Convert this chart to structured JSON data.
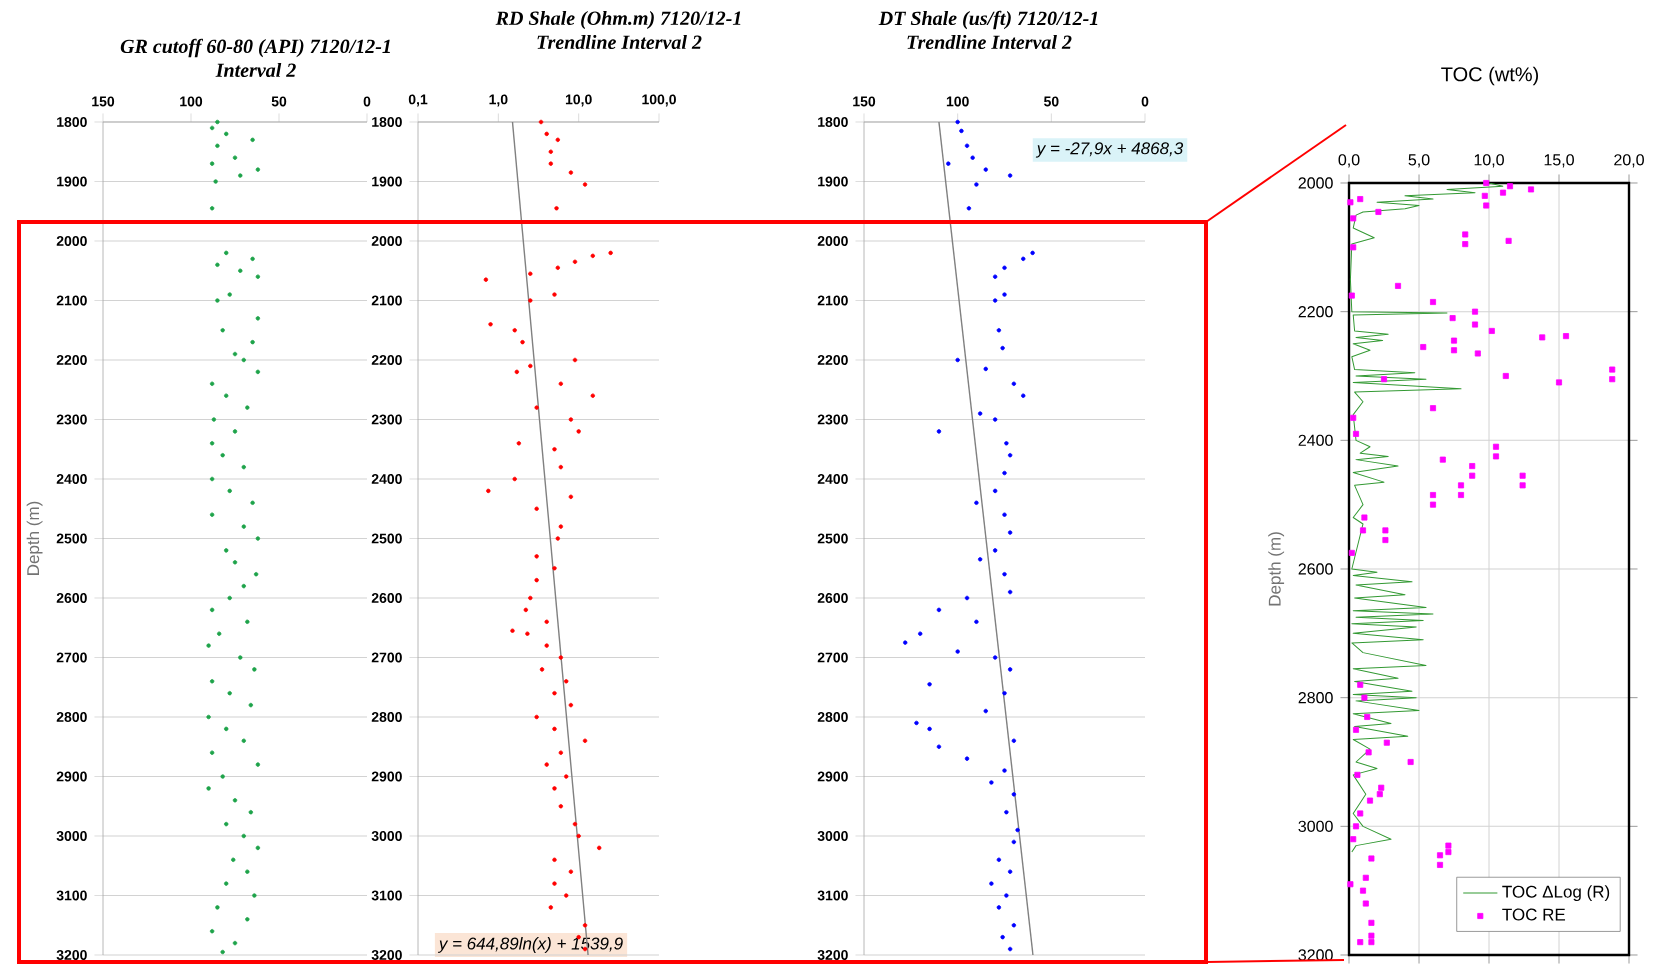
{
  "chart_data": [
    {
      "type": "scatter",
      "title": "GR cutoff 60-80 (API) 7120/12-1",
      "subtitle": "Interval 2",
      "ylabel": "Depth (m)",
      "xlim": [
        150,
        0
      ],
      "ylim": [
        3200,
        1800
      ],
      "xticks": [
        150,
        100,
        50,
        0
      ],
      "yticks": [
        1800,
        1900,
        2000,
        2100,
        2200,
        2300,
        2400,
        2500,
        2600,
        2700,
        2800,
        2900,
        3000,
        3100,
        3200
      ],
      "grid": "y",
      "marker": "circle",
      "series": [
        {
          "color": "#1ea34a",
          "x": [
            85,
            88,
            80,
            65,
            85,
            75,
            88,
            62,
            72,
            86,
            88,
            80,
            65,
            85,
            72,
            62,
            78,
            85,
            62,
            82,
            65,
            75,
            70,
            62,
            88,
            80,
            68,
            87,
            75,
            88,
            82,
            70,
            88,
            78,
            65,
            88,
            70,
            62,
            80,
            75,
            63,
            70,
            78,
            88,
            68,
            84,
            90,
            72,
            64,
            88,
            78,
            66,
            90,
            80,
            70,
            88,
            62,
            82,
            90,
            75,
            66,
            80,
            70,
            62,
            76,
            68,
            80,
            64,
            85,
            68,
            88,
            75,
            82
          ],
          "values": [
            1800,
            1810,
            1820,
            1830,
            1840,
            1860,
            1870,
            1880,
            1890,
            1900,
            1945,
            2020,
            2030,
            2040,
            2050,
            2060,
            2090,
            2100,
            2130,
            2150,
            2170,
            2190,
            2200,
            2220,
            2240,
            2260,
            2280,
            2300,
            2320,
            2340,
            2360,
            2380,
            2400,
            2420,
            2440,
            2460,
            2480,
            2500,
            2520,
            2540,
            2560,
            2580,
            2600,
            2620,
            2640,
            2660,
            2680,
            2700,
            2720,
            2740,
            2760,
            2780,
            2800,
            2820,
            2840,
            2860,
            2880,
            2900,
            2920,
            2940,
            2960,
            2980,
            3000,
            3020,
            3040,
            3060,
            3080,
            3100,
            3120,
            3140,
            3160,
            3180,
            3195
          ]
        }
      ]
    },
    {
      "type": "scatter",
      "title": "RD Shale (Ohm.m) 7120/12-1",
      "subtitle": "Trendline Interval 2",
      "log": "x",
      "xlim": [
        0.1,
        100
      ],
      "ylim": [
        3200,
        1800
      ],
      "xticks": [
        {
          "value": 0.1,
          "label": "0,1"
        },
        {
          "value": 1,
          "label": "1,0"
        },
        {
          "value": 10,
          "label": "10,0"
        },
        {
          "value": 100,
          "label": "100,0"
        }
      ],
      "yticks": [
        1800,
        1900,
        2000,
        2100,
        2200,
        2300,
        2400,
        2500,
        2600,
        2700,
        2800,
        2900,
        3000,
        3100,
        3200
      ],
      "grid": "y",
      "marker": "circle",
      "annotations": [
        "y = 644,89ln(x) + 1539,9"
      ],
      "series": [
        {
          "color": "#ff0000",
          "x": [
            3.4,
            4.0,
            5.5,
            4.5,
            4.5,
            8,
            12,
            5.3,
            25,
            15,
            9,
            5.5,
            2.5,
            0.7,
            5,
            2.5,
            0.8,
            1.6,
            2.0,
            9,
            2.5,
            1.7,
            6,
            15,
            3,
            8,
            10,
            1.8,
            5,
            6,
            1.6,
            0.75,
            8,
            3,
            6,
            5.5,
            3.0,
            5,
            3.0,
            2.5,
            2.2,
            4,
            1.5,
            2.3,
            4,
            6,
            3.5,
            7,
            5,
            8,
            3,
            5,
            12,
            6,
            4,
            7,
            5,
            6,
            9,
            10,
            18,
            5,
            8,
            5,
            7,
            4.5,
            12,
            10,
            12
          ],
          "values": [
            1800,
            1820,
            1830,
            1850,
            1870,
            1885,
            1905,
            1945,
            2020,
            2025,
            2035,
            2045,
            2055,
            2065,
            2090,
            2100,
            2140,
            2150,
            2170,
            2200,
            2210,
            2220,
            2240,
            2260,
            2280,
            2300,
            2320,
            2340,
            2350,
            2380,
            2400,
            2420,
            2430,
            2450,
            2480,
            2500,
            2530,
            2550,
            2570,
            2600,
            2620,
            2640,
            2655,
            2660,
            2680,
            2700,
            2720,
            2740,
            2760,
            2780,
            2800,
            2820,
            2840,
            2860,
            2880,
            2900,
            2920,
            2950,
            2980,
            3000,
            3020,
            3040,
            3060,
            3080,
            3100,
            3120,
            3150,
            3170,
            3190
          ]
        },
        {
          "type": "line",
          "marker": "none",
          "color": "#808080",
          "x": [
            1.5,
            13.1
          ],
          "values": [
            1800,
            3200
          ]
        }
      ]
    },
    {
      "type": "scatter",
      "title": "DT Shale (us/ft) 7120/12-1",
      "subtitle": "Trendline Interval 2",
      "xlim": [
        150,
        0
      ],
      "ylim": [
        3200,
        1800
      ],
      "xticks": [
        150,
        100,
        50,
        0
      ],
      "yticks": [
        1800,
        1900,
        2000,
        2100,
        2200,
        2300,
        2400,
        2500,
        2600,
        2700,
        2800,
        2900,
        3000,
        3100,
        3200
      ],
      "grid": "y",
      "marker": "circle",
      "annotations": [
        "y = -27,9x + 4868,3"
      ],
      "series": [
        {
          "color": "#0000ff",
          "x": [
            100,
            98,
            95,
            92,
            105,
            85,
            72,
            90,
            94,
            60,
            65,
            75,
            80,
            75,
            80,
            78,
            76,
            100,
            85,
            70,
            65,
            88,
            80,
            110,
            74,
            72,
            75,
            80,
            90,
            75,
            72,
            80,
            88,
            75,
            72,
            95,
            110,
            90,
            120,
            128,
            100,
            80,
            72,
            115,
            75,
            85,
            122,
            115,
            70,
            110,
            95,
            75,
            82,
            70,
            74,
            68,
            70,
            78,
            72,
            82,
            74,
            78,
            70,
            76,
            72
          ],
          "values": [
            1800,
            1815,
            1840,
            1860,
            1870,
            1880,
            1890,
            1905,
            1945,
            2020,
            2030,
            2045,
            2060,
            2090,
            2100,
            2150,
            2180,
            2200,
            2215,
            2240,
            2260,
            2290,
            2300,
            2320,
            2340,
            2360,
            2390,
            2420,
            2440,
            2460,
            2490,
            2520,
            2535,
            2560,
            2590,
            2600,
            2620,
            2640,
            2660,
            2675,
            2690,
            2700,
            2720,
            2745,
            2760,
            2790,
            2810,
            2820,
            2840,
            2850,
            2870,
            2890,
            2910,
            2930,
            2960,
            2990,
            3010,
            3040,
            3060,
            3080,
            3100,
            3120,
            3150,
            3170,
            3190
          ]
        },
        {
          "type": "line",
          "marker": "none",
          "color": "#808080",
          "x": [
            110.0,
            59.8
          ],
          "values": [
            1800,
            3200
          ]
        }
      ]
    },
    {
      "type": "scatter",
      "title": "TOC  (wt%)",
      "ylabel": "Depth (m)",
      "xlim": [
        0,
        20
      ],
      "ylim": [
        3200,
        2000
      ],
      "xticks": [
        {
          "value": 0,
          "label": "0,0"
        },
        {
          "value": 5,
          "label": "5,0"
        },
        {
          "value": 10,
          "label": "10,0"
        },
        {
          "value": 15,
          "label": "15,0"
        },
        {
          "value": 20,
          "label": "20,0"
        }
      ],
      "yticks": [
        2000,
        2200,
        2400,
        2600,
        2800,
        3000,
        3200
      ],
      "grid": true,
      "marker": "square",
      "legend": "bottom right",
      "series": [
        {
          "type": "line",
          "marker": "none",
          "name": "TOC ΔLog (R)",
          "color": "#339933",
          "x": [
            10,
            11,
            7,
            9,
            4,
            6,
            2,
            5,
            4,
            1,
            0.5,
            0.3,
            1.8,
            0.2,
            0.1,
            0.2,
            7,
            0.3,
            0.4,
            2.8,
            0.5,
            2.4,
            0.3,
            1.5,
            0.2,
            0.4,
            4.7,
            0.5,
            5.5,
            0.3,
            8,
            0.4,
            1,
            0.3,
            0.5,
            1.5,
            0.8,
            2.8,
            0.5,
            3.5,
            0.3,
            2.5,
            0.4,
            1.0,
            0.3,
            1.0,
            0.2,
            2,
            0.3,
            4.5,
            0.5,
            4,
            0.4,
            5.5,
            0.3,
            6,
            0.5,
            5.3,
            0.2,
            4.8,
            0.3,
            5.3,
            0.2,
            1,
            5.5,
            0.3,
            3.5,
            0.4,
            4.5,
            0.3,
            4.8,
            0.5,
            5,
            0.3,
            3,
            0.4,
            4.2,
            0.3,
            1.5,
            0.5,
            2,
            0.3,
            1.2,
            0.3,
            1,
            3,
            0.5,
            0.2
          ],
          "values": [
            2000,
            2005,
            2010,
            2015,
            2020,
            2025,
            2030,
            2035,
            2040,
            2045,
            2050,
            2070,
            2085,
            2095,
            2150,
            2200,
            2202,
            2205,
            2230,
            2235,
            2240,
            2245,
            2250,
            2260,
            2270,
            2290,
            2295,
            2300,
            2305,
            2310,
            2320,
            2325,
            2340,
            2360,
            2400,
            2410,
            2420,
            2425,
            2430,
            2440,
            2450,
            2465,
            2470,
            2500,
            2520,
            2530,
            2600,
            2605,
            2610,
            2620,
            2625,
            2640,
            2645,
            2660,
            2665,
            2670,
            2675,
            2680,
            2685,
            2690,
            2700,
            2710,
            2715,
            2730,
            2750,
            2755,
            2770,
            2775,
            2790,
            2795,
            2800,
            2805,
            2820,
            2825,
            2840,
            2845,
            2860,
            2865,
            2880,
            2900,
            2910,
            2920,
            2950,
            2980,
            3000,
            3020,
            3030,
            3040
          ]
        },
        {
          "name": "TOC RE",
          "color": "#ff00ff",
          "x": [
            9.8,
            11.5,
            13,
            11,
            9.7,
            0.8,
            0.1,
            9.8,
            2.1,
            0.3,
            8.3,
            11.4,
            8.3,
            0.3,
            3.5,
            0.2,
            6,
            9,
            7.4,
            9,
            10.2,
            13.8,
            15.5,
            7.5,
            5.3,
            7.5,
            9.2,
            18.8,
            18.8,
            11.2,
            2.5,
            15,
            6,
            0.3,
            0.5,
            10.5,
            10.5,
            6.7,
            8.8,
            8.8,
            12.4,
            12.4,
            8,
            8,
            6,
            6,
            1.1,
            2.6,
            2.6,
            1,
            0.2,
            0.8,
            1.1,
            1.3,
            0.5,
            2.7,
            1.4,
            4.4,
            0.6,
            2.3,
            2.2,
            1.5,
            0.8,
            0.5,
            0.3,
            7.1,
            7.1,
            6.5,
            1.6,
            6.5,
            1.2,
            0.1,
            1.0,
            1.2,
            1.6,
            1.6,
            0.8,
            1.6
          ],
          "values": [
            2000,
            2005,
            2010,
            2015,
            2020,
            2025,
            2030,
            2035,
            2045,
            2055,
            2080,
            2090,
            2095,
            2100,
            2160,
            2175,
            2185,
            2200,
            2210,
            2220,
            2230,
            2240,
            2238,
            2245,
            2255,
            2260,
            2265,
            2290,
            2305,
            2300,
            2305,
            2310,
            2350,
            2365,
            2390,
            2410,
            2425,
            2430,
            2440,
            2455,
            2455,
            2470,
            2470,
            2485,
            2485,
            2500,
            2520,
            2540,
            2555,
            2540,
            2575,
            2780,
            2800,
            2830,
            2850,
            2870,
            2885,
            2900,
            2920,
            2940,
            2950,
            2960,
            2980,
            3000,
            3020,
            3030,
            3040,
            3045,
            3050,
            3060,
            3080,
            3090,
            3100,
            3120,
            3150,
            3170,
            3180,
            3180
          ]
        }
      ]
    }
  ]
}
